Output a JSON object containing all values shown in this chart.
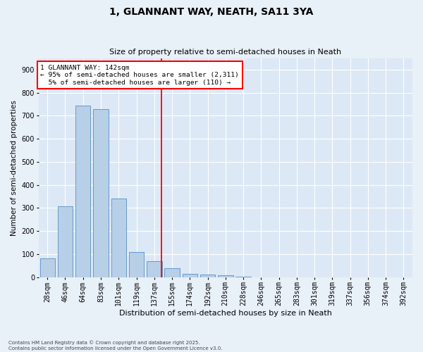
{
  "title": "1, GLANNANT WAY, NEATH, SA11 3YA",
  "subtitle": "Size of property relative to semi-detached houses in Neath",
  "xlabel": "Distribution of semi-detached houses by size in Neath",
  "ylabel": "Number of semi-detached properties",
  "bar_labels": [
    "28sqm",
    "46sqm",
    "64sqm",
    "83sqm",
    "101sqm",
    "119sqm",
    "137sqm",
    "155sqm",
    "174sqm",
    "192sqm",
    "210sqm",
    "228sqm",
    "246sqm",
    "265sqm",
    "283sqm",
    "301sqm",
    "319sqm",
    "337sqm",
    "356sqm",
    "374sqm",
    "392sqm"
  ],
  "bar_values": [
    80,
    307,
    745,
    728,
    340,
    110,
    70,
    40,
    15,
    12,
    8,
    2,
    0,
    0,
    0,
    0,
    0,
    0,
    0,
    0,
    0
  ],
  "bar_color": "#b8cfe8",
  "bar_edgecolor": "#6699cc",
  "vline_color": "red",
  "vline_pos": 6.42,
  "pct_smaller": 95,
  "pct_smaller_count": 2311,
  "pct_larger": 5,
  "pct_larger_count": 110,
  "background_color": "#e8f0f8",
  "plot_bg_color": "#dce8f5",
  "grid_color": "white",
  "ylim": [
    0,
    950
  ],
  "yticks": [
    0,
    100,
    200,
    300,
    400,
    500,
    600,
    700,
    800,
    900
  ],
  "annotation_box_facecolor": "white",
  "annotation_box_edgecolor": "red",
  "title_fontsize": 10,
  "subtitle_fontsize": 8,
  "xlabel_fontsize": 8,
  "ylabel_fontsize": 7.5,
  "tick_fontsize": 7,
  "footer": "Contains HM Land Registry data © Crown copyright and database right 2025.\nContains public sector information licensed under the Open Government Licence v3.0."
}
